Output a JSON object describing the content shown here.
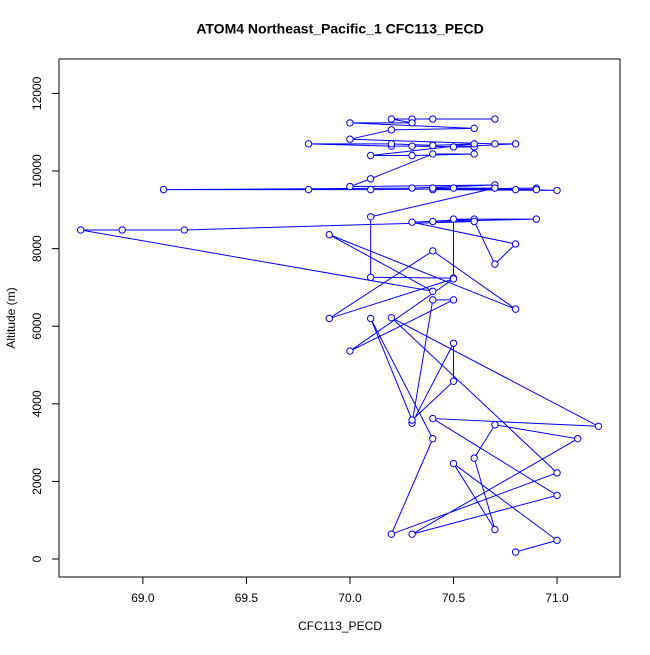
{
  "chart_data": {
    "type": "line",
    "title": "ATOM4 Northeast_Pacific_1 CFC113_PECD",
    "x_label": "CFC113_PECD",
    "y_label": "Altitude (m)",
    "color": "#0000ff",
    "markers": "open-circle",
    "x": [
      70.7,
      70.4,
      70.3,
      70.2,
      70.3,
      70.0,
      70.6,
      70.2,
      70.0,
      70.7,
      70.8,
      70.5,
      70.6,
      70.3,
      70.2,
      69.8,
      70.2,
      70.4,
      70.6,
      70.1,
      70.3,
      70.6,
      70.4,
      70.1,
      70.0,
      70.7,
      70.3,
      69.1,
      69.8,
      70.1,
      70.9,
      70.4,
      71.0,
      70.5,
      70.8,
      70.9,
      70.4,
      70.7,
      70.1,
      70.1,
      70.5,
      70.5,
      70.9,
      70.4,
      70.6,
      70.3,
      70.8,
      70.7,
      70.6,
      69.2,
      68.9,
      68.7,
      70.4,
      69.9,
      70.8,
      70.4,
      69.9,
      70.5,
      70.0,
      70.5,
      70.4,
      70.3,
      70.5,
      70.5,
      70.3,
      70.1,
      70.4,
      70.2,
      71.0,
      70.2,
      71.2,
      70.4,
      71.0,
      70.3,
      71.1,
      70.7,
      70.6,
      70.7,
      70.5,
      71.0,
      70.8
    ],
    "values": [
      11340,
      11340,
      11340,
      11340,
      11240,
      11240,
      11100,
      11060,
      10820,
      10700,
      10700,
      10620,
      10620,
      10640,
      10640,
      10700,
      10700,
      10660,
      10700,
      10400,
      10400,
      10440,
      10440,
      9800,
      9600,
      9640,
      9560,
      9520,
      9520,
      9520,
      9560,
      9520,
      9500,
      9560,
      9520,
      9520,
      9560,
      9560,
      8820,
      7260,
      7240,
      8760,
      8760,
      8700,
      8760,
      8680,
      8120,
      7600,
      8700,
      8480,
      8480,
      8480,
      6900,
      8360,
      6440,
      7940,
      6200,
      7220,
      5360,
      6680,
      6680,
      3500,
      5560,
      4580,
      3580,
      6200,
      3100,
      640,
      2220,
      6220,
      3420,
      3620,
      1640,
      640,
      3100,
      3460,
      2600,
      760,
      2460,
      480,
      180
    ],
    "xlim": [
      68.595,
      71.304
    ],
    "ylim": [
      -464,
      12887
    ],
    "xticks": [
      {
        "value": 69,
        "label": "69.0"
      },
      69.5,
      {
        "value": 70,
        "label": "70.0"
      },
      70.5,
      {
        "value": 71,
        "label": "71.0"
      }
    ],
    "yticks": [
      0,
      2000,
      4000,
      6000,
      8000,
      10000,
      12000
    ]
  }
}
